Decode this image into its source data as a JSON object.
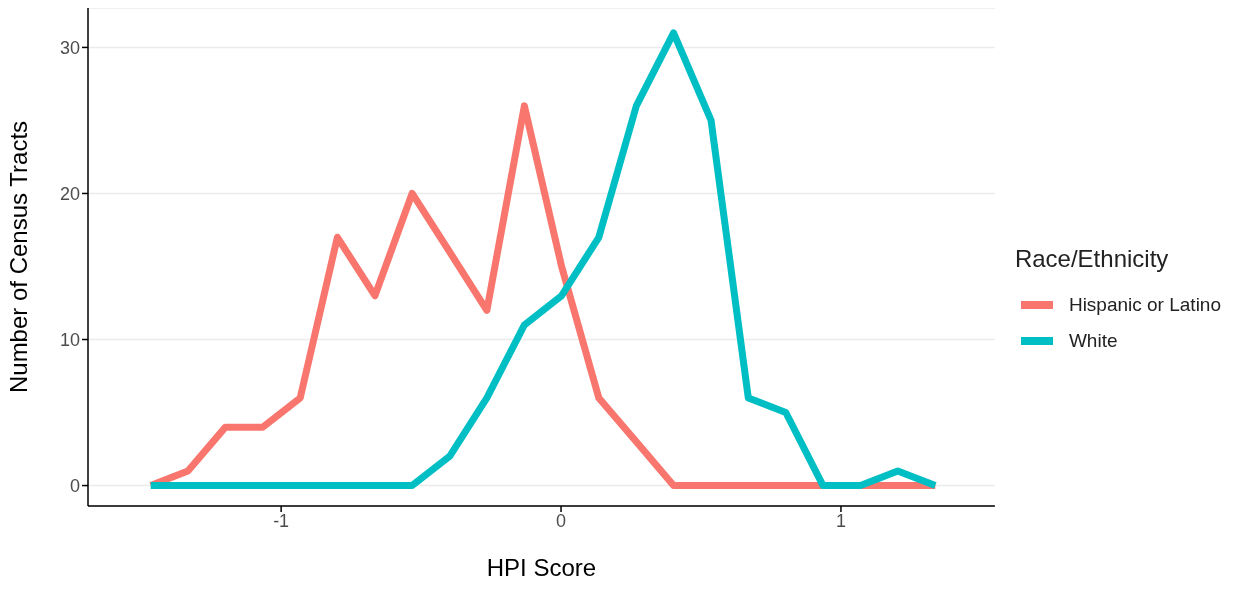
{
  "chart_data": {
    "type": "line",
    "xlabel": "HPI Score",
    "ylabel": "Number of Census Tracts",
    "legend_title": "Race/Ethnicity",
    "x": [
      -1.466,
      -1.333,
      -1.199,
      -1.066,
      -0.932,
      -0.799,
      -0.665,
      -0.532,
      -0.398,
      -0.265,
      -0.131,
      0.002,
      0.135,
      0.269,
      0.402,
      0.536,
      0.669,
      0.803,
      0.936,
      1.07,
      1.203,
      1.337
    ],
    "series": [
      {
        "name": "Hispanic or Latino",
        "color": "#f8766d",
        "values": [
          0,
          1,
          4,
          4,
          6,
          17,
          13,
          20,
          16,
          12,
          26,
          15,
          6,
          3,
          0,
          0,
          0,
          0,
          0,
          0,
          0,
          0
        ]
      },
      {
        "name": "White",
        "color": "#00bfc4",
        "values": [
          0,
          0,
          0,
          0,
          0,
          0,
          0,
          0,
          2,
          6,
          11,
          13,
          17,
          26,
          31,
          25,
          6,
          5,
          0,
          0,
          1,
          0
        ]
      }
    ],
    "xlim": [
      -1.69,
      1.55
    ],
    "xticks": [
      -1,
      0,
      1
    ],
    "ylim": [
      -1.4,
      32.7
    ],
    "yticks": [
      0,
      10,
      20,
      30
    ],
    "grid": "y",
    "legend": "right",
    "marker": "none",
    "line_style": "solid"
  }
}
